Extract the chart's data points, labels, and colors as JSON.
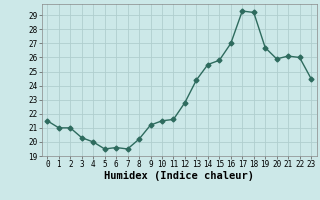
{
  "xlabel": "Humidex (Indice chaleur)",
  "x": [
    0,
    1,
    2,
    3,
    4,
    5,
    6,
    7,
    8,
    9,
    10,
    11,
    12,
    13,
    14,
    15,
    16,
    17,
    18,
    19,
    20,
    21,
    22,
    23
  ],
  "y": [
    21.5,
    21.0,
    21.0,
    20.3,
    20.0,
    19.5,
    19.6,
    19.5,
    20.2,
    21.2,
    21.5,
    21.6,
    22.8,
    24.4,
    25.5,
    25.8,
    27.0,
    29.3,
    29.2,
    26.7,
    25.9,
    26.1,
    26.0,
    24.5
  ],
  "line_color": "#2e6b5e",
  "marker": "D",
  "marker_size": 2.5,
  "background_color": "#cce8e8",
  "grid_color": "#b0cece",
  "ylim": [
    19,
    29.8
  ],
  "yticks": [
    19,
    20,
    21,
    22,
    23,
    24,
    25,
    26,
    27,
    28,
    29
  ],
  "xlim": [
    -0.5,
    23.5
  ],
  "xticks": [
    0,
    1,
    2,
    3,
    4,
    5,
    6,
    7,
    8,
    9,
    10,
    11,
    12,
    13,
    14,
    15,
    16,
    17,
    18,
    19,
    20,
    21,
    22,
    23
  ],
  "tick_fontsize": 5.5,
  "xlabel_fontsize": 7.5,
  "linewidth": 1.0
}
